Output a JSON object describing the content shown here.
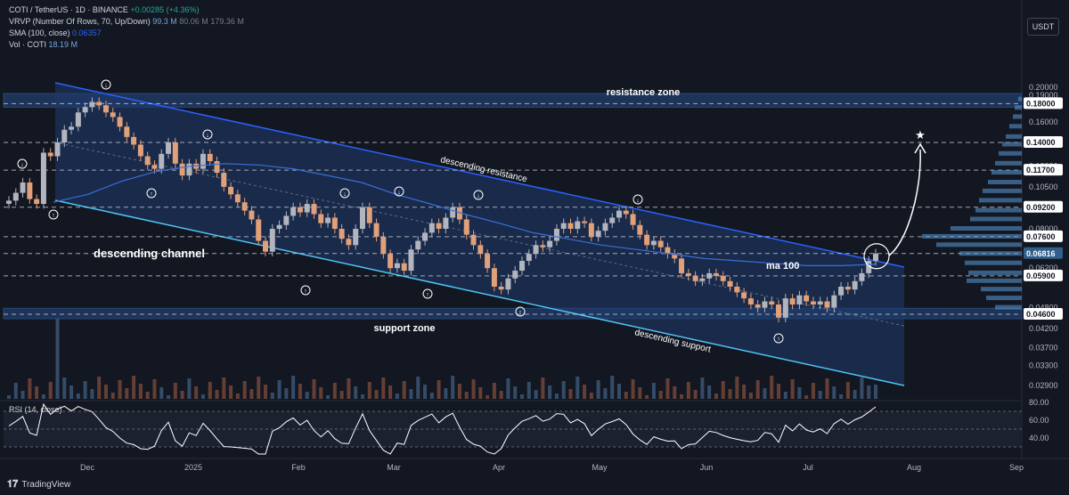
{
  "header": {
    "symbol_line": "COTI / TetherUS · 1D · BINANCE",
    "change": "+0.00285 (+4.36%)",
    "vrvp_label": "VRVP (Number Of Rows, 70, Up/Down)",
    "vrvp_values": [
      "99.3 M",
      "80.06 M",
      "179.36 M"
    ],
    "sma_label": "SMA (100, close)",
    "sma_value": "0.06357",
    "vol_label": "Vol · COTI",
    "vol_value": "18.19 M"
  },
  "currency": "USDT",
  "branding": "TradingView",
  "colors": {
    "bull": "#b2b5be",
    "bear": "#e0a07a",
    "channel_upper": "#2962ff",
    "channel_lower": "#4fc3f7",
    "channel_fill": "#1f3a6b",
    "sma": "#3a6fd8",
    "profile": "#5b9bd5",
    "zone": "#2a4a78"
  },
  "chart_data": {
    "type": "candlestick",
    "scale": "log",
    "y_axis_ticks": [
      "0.20000",
      "0.19000",
      "0.16000",
      "0.12000",
      "0.10500",
      "0.08000",
      "0.06200",
      "0.04800",
      "0.04200",
      "0.03700",
      "0.03300",
      "0.02900"
    ],
    "price_labels": [
      {
        "text": "0.18000",
        "value": 0.18
      },
      {
        "text": "0.14000",
        "value": 0.14
      },
      {
        "text": "0.11700",
        "value": 0.117
      },
      {
        "text": "0.09200",
        "value": 0.092
      },
      {
        "text": "0.07600",
        "value": 0.076
      },
      {
        "text": "0.06816",
        "value": 0.06816
      },
      {
        "text": "0.05900",
        "value": 0.059
      },
      {
        "text": "0.04600",
        "value": 0.046
      }
    ],
    "x_axis_labels": [
      "Dec",
      "2025",
      "Feb",
      "Mar",
      "Apr",
      "May",
      "Jun",
      "Jul",
      "Aug",
      "Sep"
    ],
    "closes": [
      0.096,
      0.101,
      0.108,
      0.097,
      0.094,
      0.131,
      0.128,
      0.14,
      0.152,
      0.155,
      0.17,
      0.176,
      0.182,
      0.178,
      0.17,
      0.165,
      0.155,
      0.145,
      0.138,
      0.128,
      0.121,
      0.118,
      0.13,
      0.14,
      0.122,
      0.113,
      0.122,
      0.118,
      0.13,
      0.124,
      0.115,
      0.105,
      0.1,
      0.095,
      0.09,
      0.085,
      0.074,
      0.069,
      0.08,
      0.082,
      0.087,
      0.092,
      0.089,
      0.094,
      0.088,
      0.083,
      0.086,
      0.08,
      0.075,
      0.072,
      0.08,
      0.092,
      0.083,
      0.076,
      0.068,
      0.062,
      0.064,
      0.061,
      0.07,
      0.074,
      0.078,
      0.083,
      0.08,
      0.086,
      0.092,
      0.085,
      0.077,
      0.072,
      0.068,
      0.062,
      0.055,
      0.054,
      0.058,
      0.061,
      0.065,
      0.068,
      0.072,
      0.071,
      0.074,
      0.08,
      0.083,
      0.08,
      0.084,
      0.083,
      0.076,
      0.079,
      0.083,
      0.086,
      0.09,
      0.088,
      0.082,
      0.077,
      0.072,
      0.074,
      0.071,
      0.068,
      0.066,
      0.06,
      0.059,
      0.057,
      0.058,
      0.06,
      0.059,
      0.057,
      0.055,
      0.053,
      0.051,
      0.049,
      0.048,
      0.05,
      0.049,
      0.045,
      0.051,
      0.049,
      0.052,
      0.05,
      0.049,
      0.05,
      0.048,
      0.052,
      0.055,
      0.054,
      0.057,
      0.06,
      0.065,
      0.06816
    ],
    "sma_100": [
      0.095,
      0.1,
      0.109,
      0.116,
      0.12,
      0.122,
      0.121,
      0.118,
      0.113,
      0.108,
      0.1,
      0.094,
      0.088,
      0.083,
      0.078,
      0.075,
      0.072,
      0.07,
      0.068,
      0.066,
      0.065,
      0.064,
      0.063,
      0.063,
      0.06357
    ],
    "rsi": {
      "label": "RSI (14, close)",
      "levels": [
        70,
        50,
        30
      ],
      "ticks": [
        "80.00",
        "60.00",
        "40.00"
      ],
      "last": 75
    },
    "annotations": {
      "resistance_zone": {
        "text": "resistance zone",
        "from": 0.18,
        "to": 0.19
      },
      "support_zone": {
        "text": "support zone",
        "from": 0.046,
        "to": 0.047
      },
      "channel_label": "descending channel",
      "upper_label": "descending resistance",
      "lower_label": "descending support",
      "ma_label": "ma 100"
    }
  }
}
